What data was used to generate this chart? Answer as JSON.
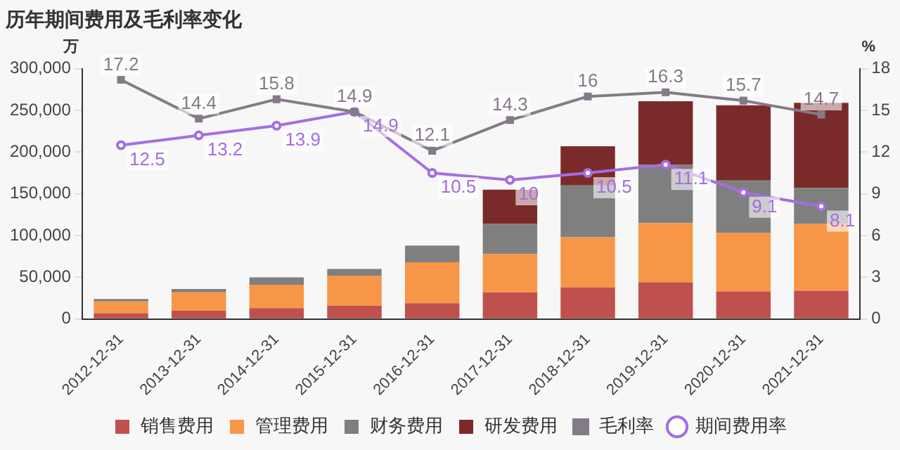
{
  "chart_data": {
    "type": "bar",
    "title": "历年期间费用及毛利率变化",
    "ylabel": "万",
    "y2label": "%",
    "categories": [
      "2012-12-31",
      "2013-12-31",
      "2014-12-31",
      "2015-12-31",
      "2016-12-31",
      "2017-12-31",
      "2018-12-31",
      "2019-12-31",
      "2020-12-31",
      "2021-12-31"
    ],
    "stacked": true,
    "series": [
      {
        "name": "销售费用",
        "type": "bar",
        "color": "#c0504d",
        "values": [
          7000,
          10000,
          13000,
          16000,
          19000,
          32000,
          38000,
          44000,
          33000,
          34000
        ]
      },
      {
        "name": "管理费用",
        "type": "bar",
        "color": "#f79646",
        "values": [
          14000,
          22000,
          28000,
          36000,
          49000,
          46000,
          60000,
          71000,
          70000,
          80000
        ]
      },
      {
        "name": "财务费用",
        "type": "bar",
        "color": "#7f7f7f",
        "values": [
          3000,
          4000,
          9000,
          8000,
          20000,
          36000,
          62000,
          70000,
          63000,
          43000
        ]
      },
      {
        "name": "研发费用",
        "type": "bar",
        "color": "#7b2a2a",
        "values": [
          null,
          null,
          null,
          null,
          null,
          41000,
          47000,
          76000,
          90000,
          102000
        ]
      },
      {
        "name": "毛利率",
        "type": "line",
        "axis": "y2",
        "color": "#857a88",
        "marker": "square",
        "values": [
          17.2,
          14.4,
          15.8,
          14.9,
          12.1,
          14.3,
          16,
          16.3,
          15.7,
          14.7
        ],
        "value_labels": [
          "17.2",
          "14.4",
          "15.8",
          "14.9",
          "12.1",
          "14.3",
          "16",
          "16.3",
          "15.7",
          "14.7"
        ]
      },
      {
        "name": "期间费用率",
        "type": "line",
        "axis": "y2",
        "color": "#a46ee0",
        "marker": "circle",
        "values": [
          12.5,
          13.2,
          13.9,
          14.9,
          10.5,
          10,
          10.5,
          11.1,
          9.1,
          8.1
        ],
        "value_labels": [
          "12.5",
          "13.2",
          "13.9",
          "14.9",
          "10.5",
          "10",
          "10.5",
          "11.1",
          "9.1",
          "8.1"
        ]
      }
    ],
    "ylim": [
      0,
      300000
    ],
    "yticks": [
      0,
      {
        "value": 50000,
        "label": "50,000"
      },
      {
        "value": 100000,
        "label": "100,000"
      },
      {
        "value": 150000,
        "label": "150,000"
      },
      {
        "value": 200000,
        "label": "200,000"
      },
      {
        "value": 250000,
        "label": "250,000"
      },
      {
        "value": 300000,
        "label": "300,000"
      }
    ],
    "y2lim": [
      0,
      18
    ],
    "y2ticks": [
      0,
      3,
      6,
      9,
      12,
      15,
      18
    ],
    "legend": "bottom",
    "grid": false
  }
}
